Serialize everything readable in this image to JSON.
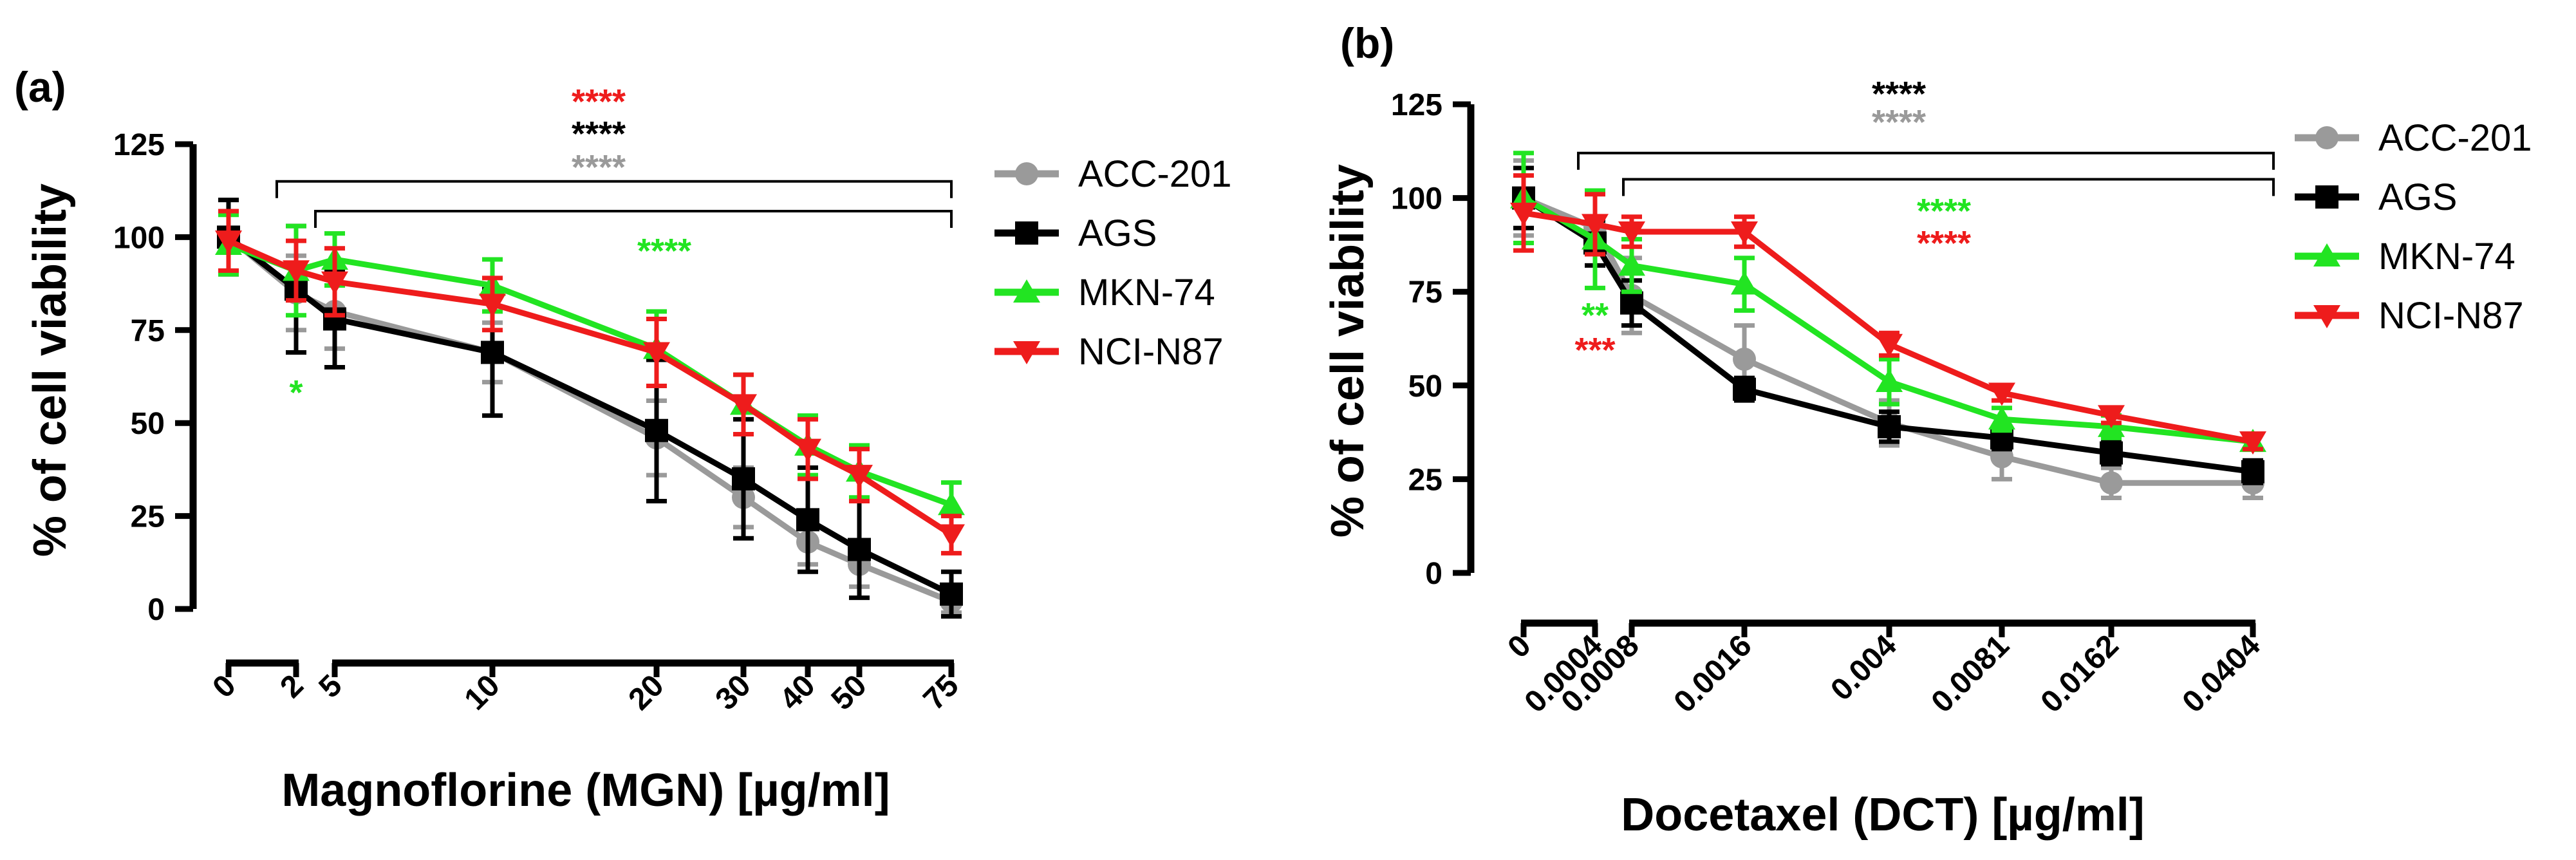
{
  "chart_data": [
    {
      "panel": "(a)",
      "type": "line",
      "ylabel": "% of cell viability",
      "xlabel": "Magnoflorine (MGN) [µg/ml]",
      "ylim": [
        0,
        125
      ],
      "yticks": [
        "0",
        "25",
        "50",
        "75",
        "100",
        "125"
      ],
      "xticks": [
        "0",
        "2",
        "5",
        "10",
        "20",
        "30",
        "40",
        "50",
        "75"
      ],
      "x": [
        "0",
        "2",
        "5",
        "10",
        "20",
        "30",
        "40",
        "50",
        "75"
      ],
      "series": [
        {
          "name": "ACC-201",
          "color": "#9a9a9a",
          "marker": "circle",
          "values": [
            100,
            85,
            80,
            69,
            46,
            30,
            18,
            12,
            2
          ],
          "errors": [
            10,
            10,
            10,
            8,
            10,
            8,
            6,
            6,
            3
          ]
        },
        {
          "name": "AGS",
          "color": "#000000",
          "marker": "square",
          "values": [
            100,
            86,
            78,
            69,
            48,
            35,
            24,
            16,
            4
          ],
          "errors": [
            10,
            17,
            13,
            17,
            19,
            16,
            14,
            13,
            6
          ]
        },
        {
          "name": "MKN-74",
          "color": "#22e422",
          "marker": "triangle-up",
          "values": [
            98,
            91,
            94,
            87,
            70,
            55,
            44,
            37,
            28
          ],
          "errors": [
            8,
            12,
            7,
            7,
            10,
            8,
            8,
            7,
            6
          ]
        },
        {
          "name": "NCI-N87",
          "color": "#ee1c1c",
          "marker": "triangle-down",
          "values": [
            99,
            91,
            88,
            82,
            69,
            55,
            43,
            36,
            20
          ],
          "errors": [
            8,
            8,
            9,
            7,
            9,
            8,
            8,
            7,
            5
          ]
        }
      ],
      "annotations": [
        {
          "text": "****",
          "color": "#ee1c1c",
          "position": "above-top-bracket"
        },
        {
          "text": "****",
          "color": "#000000",
          "position": "above-top-bracket"
        },
        {
          "text": "****",
          "color": "#9a9a9a",
          "position": "above-top-bracket"
        },
        {
          "text": "****",
          "color": "#22e422",
          "position": "below-bracket"
        },
        {
          "text": "*",
          "color": "#22e422",
          "position": "below-x-2"
        }
      ],
      "legend_position": "right"
    },
    {
      "panel": "(b)",
      "type": "line",
      "ylabel": "% of cell viability",
      "xlabel": "Docetaxel (DCT) [µg/ml]",
      "ylim": [
        0,
        125
      ],
      "yticks": [
        "0",
        "25",
        "50",
        "75",
        "100",
        "125"
      ],
      "xticks": [
        "0",
        "0.0004",
        "0.0008",
        "0.0016",
        "0.004",
        "0.0081",
        "0.0162",
        "0.0404"
      ],
      "x": [
        "0",
        "0.0004",
        "0.0008",
        "0.0016",
        "0.004",
        "0.0081",
        "0.0162",
        "0.0404"
      ],
      "series": [
        {
          "name": "ACC-201",
          "color": "#9a9a9a",
          "marker": "circle",
          "values": [
            100,
            92,
            74,
            57,
            40,
            31,
            24,
            24
          ],
          "errors": [
            10,
            10,
            10,
            9,
            6,
            6,
            4,
            4
          ]
        },
        {
          "name": "AGS",
          "color": "#000000",
          "marker": "square",
          "values": [
            100,
            88,
            72,
            49,
            39,
            36,
            32,
            27
          ],
          "errors": [
            8,
            6,
            6,
            3,
            4,
            3,
            3,
            3
          ]
        },
        {
          "name": "MKN-74",
          "color": "#22e422",
          "marker": "triangle-up",
          "values": [
            100,
            89,
            82,
            77,
            51,
            41,
            39,
            35
          ],
          "errors": [
            12,
            13,
            7,
            7,
            6,
            3,
            3,
            2
          ]
        },
        {
          "name": "NCI-N87",
          "color": "#ee1c1c",
          "marker": "triangle-down",
          "values": [
            96,
            93,
            91,
            91,
            61,
            48,
            42,
            35
          ],
          "errors": [
            10,
            8,
            4,
            4,
            3,
            2,
            2,
            2
          ]
        }
      ],
      "annotations": [
        {
          "text": "****",
          "color": "#000000",
          "position": "above-top-bracket"
        },
        {
          "text": "****",
          "color": "#9a9a9a",
          "position": "above-top-bracket"
        },
        {
          "text": "****",
          "color": "#22e422",
          "position": "below-bracket"
        },
        {
          "text": "****",
          "color": "#ee1c1c",
          "position": "below-bracket"
        },
        {
          "text": "**",
          "color": "#22e422",
          "position": "below-x-0.0004"
        },
        {
          "text": "***",
          "color": "#ee1c1c",
          "position": "below-x-0.0004"
        }
      ],
      "legend_position": "right"
    }
  ]
}
